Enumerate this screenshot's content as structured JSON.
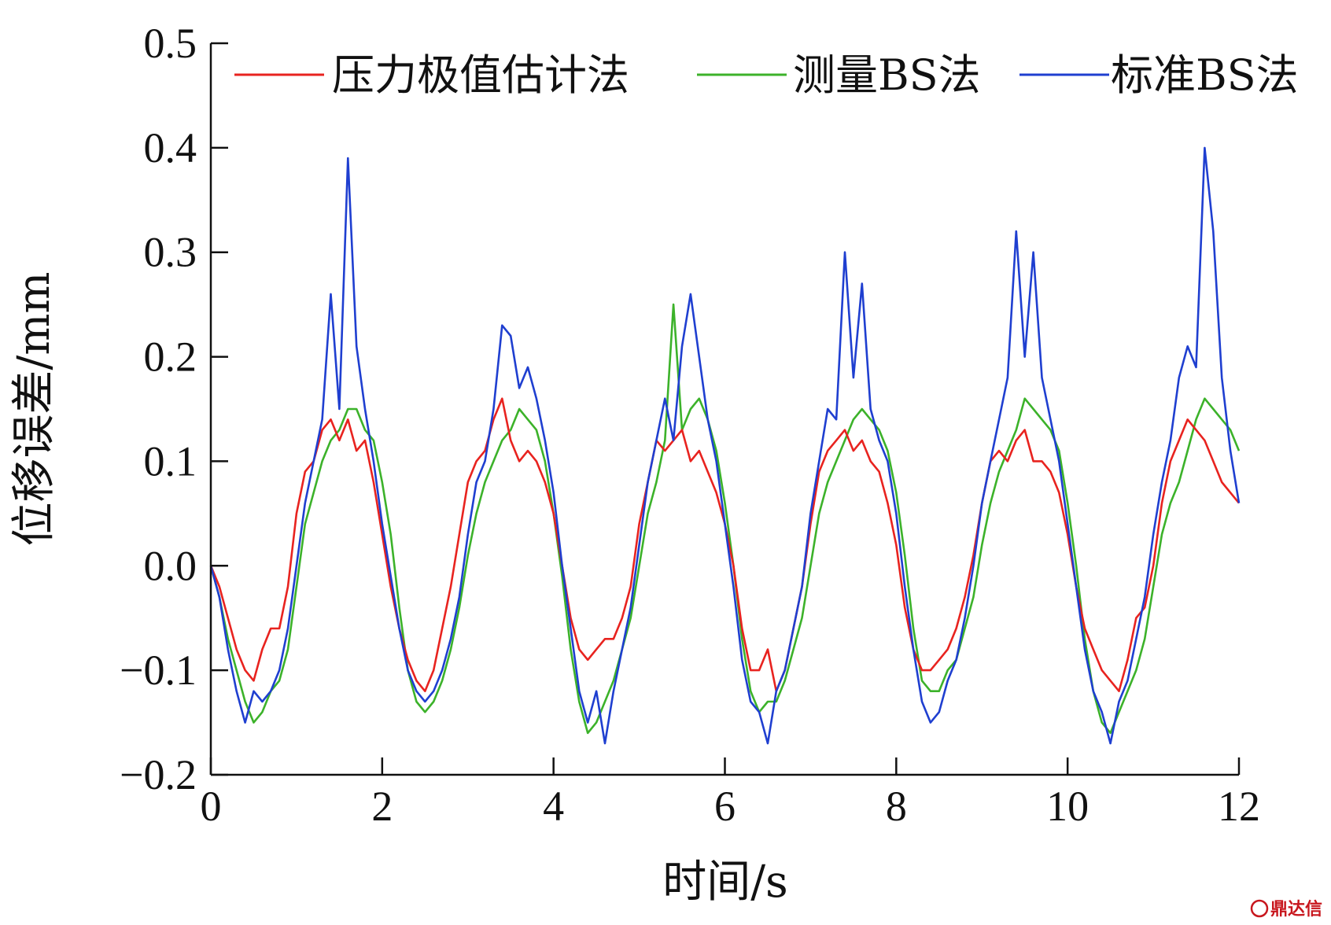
{
  "chart_data": {
    "type": "line",
    "title": "",
    "xlabel": "时间/s",
    "ylabel": "位移误差/mm",
    "xlim": [
      0,
      12
    ],
    "ylim": [
      -0.2,
      0.5
    ],
    "xticks": [
      0,
      2,
      4,
      6,
      8,
      10,
      12
    ],
    "xtick_labels": [
      "0",
      "2",
      "4",
      "6",
      "8",
      "10",
      "12"
    ],
    "yticks": [
      -0.2,
      -0.1,
      0.0,
      0.1,
      0.2,
      0.3,
      0.4,
      0.5
    ],
    "ytick_labels": [
      "−0.2",
      "−0.1",
      "0.0",
      "0.1",
      "0.2",
      "0.3",
      "0.4",
      "0.5"
    ],
    "grid": false,
    "legend_position": "top",
    "colors": {
      "red": "#e8231f",
      "green": "#3cb22a",
      "blue": "#1f3fd0"
    },
    "series": [
      {
        "name": "压力极值估计法",
        "color": "#e8231f",
        "x": [
          0.0,
          0.1,
          0.2,
          0.3,
          0.4,
          0.5,
          0.6,
          0.7,
          0.8,
          0.9,
          1.0,
          1.1,
          1.2,
          1.3,
          1.4,
          1.5,
          1.6,
          1.7,
          1.8,
          1.9,
          2.0,
          2.1,
          2.2,
          2.3,
          2.4,
          2.5,
          2.6,
          2.7,
          2.8,
          2.9,
          3.0,
          3.1,
          3.2,
          3.3,
          3.4,
          3.5,
          3.6,
          3.7,
          3.8,
          3.9,
          4.0,
          4.1,
          4.2,
          4.3,
          4.4,
          4.5,
          4.6,
          4.7,
          4.8,
          4.9,
          5.0,
          5.1,
          5.2,
          5.3,
          5.4,
          5.5,
          5.6,
          5.7,
          5.8,
          5.9,
          6.0,
          6.1,
          6.2,
          6.3,
          6.4,
          6.5,
          6.6,
          6.7,
          6.8,
          6.9,
          7.0,
          7.1,
          7.2,
          7.3,
          7.4,
          7.5,
          7.6,
          7.7,
          7.8,
          7.9,
          8.0,
          8.1,
          8.2,
          8.3,
          8.4,
          8.5,
          8.6,
          8.7,
          8.8,
          8.9,
          9.0,
          9.1,
          9.2,
          9.3,
          9.4,
          9.5,
          9.6,
          9.7,
          9.8,
          9.9,
          10.0,
          10.1,
          10.2,
          10.3,
          10.4,
          10.5,
          10.6,
          10.7,
          10.8,
          10.9,
          11.0,
          11.1,
          11.2,
          11.3,
          11.4,
          11.5,
          11.6,
          11.7,
          11.8,
          11.9,
          12.0
        ],
        "y": [
          0.0,
          -0.02,
          -0.05,
          -0.08,
          -0.1,
          -0.11,
          -0.08,
          -0.06,
          -0.06,
          -0.02,
          0.05,
          0.09,
          0.1,
          0.13,
          0.14,
          0.12,
          0.14,
          0.11,
          0.12,
          0.08,
          0.03,
          -0.02,
          -0.06,
          -0.09,
          -0.11,
          -0.12,
          -0.1,
          -0.06,
          -0.02,
          0.03,
          0.08,
          0.1,
          0.11,
          0.14,
          0.16,
          0.12,
          0.1,
          0.11,
          0.1,
          0.08,
          0.05,
          0.0,
          -0.05,
          -0.08,
          -0.09,
          -0.08,
          -0.07,
          -0.07,
          -0.05,
          -0.02,
          0.04,
          0.08,
          0.12,
          0.11,
          0.12,
          0.13,
          0.1,
          0.11,
          0.09,
          0.07,
          0.04,
          0.0,
          -0.06,
          -0.1,
          -0.1,
          -0.08,
          -0.12,
          -0.1,
          -0.06,
          -0.02,
          0.04,
          0.09,
          0.11,
          0.12,
          0.13,
          0.11,
          0.12,
          0.1,
          0.09,
          0.06,
          0.02,
          -0.04,
          -0.08,
          -0.1,
          -0.1,
          -0.09,
          -0.08,
          -0.06,
          -0.03,
          0.01,
          0.06,
          0.1,
          0.11,
          0.1,
          0.12,
          0.13,
          0.1,
          0.1,
          0.09,
          0.07,
          0.03,
          -0.02,
          -0.06,
          -0.08,
          -0.1,
          -0.11,
          -0.12,
          -0.09,
          -0.05,
          -0.04,
          0.0,
          0.06,
          0.1,
          0.12,
          0.14,
          0.13,
          0.12,
          0.1,
          0.08,
          0.07,
          0.06
        ]
      },
      {
        "name": "测量BS法",
        "color": "#3cb22a",
        "x": [
          0.0,
          0.1,
          0.2,
          0.3,
          0.4,
          0.5,
          0.6,
          0.7,
          0.8,
          0.9,
          1.0,
          1.1,
          1.2,
          1.3,
          1.4,
          1.5,
          1.6,
          1.7,
          1.8,
          1.9,
          2.0,
          2.1,
          2.2,
          2.3,
          2.4,
          2.5,
          2.6,
          2.7,
          2.8,
          2.9,
          3.0,
          3.1,
          3.2,
          3.3,
          3.4,
          3.5,
          3.6,
          3.7,
          3.8,
          3.9,
          4.0,
          4.1,
          4.2,
          4.3,
          4.4,
          4.5,
          4.6,
          4.7,
          4.8,
          4.9,
          5.0,
          5.1,
          5.2,
          5.3,
          5.4,
          5.5,
          5.6,
          5.7,
          5.8,
          5.9,
          6.0,
          6.1,
          6.2,
          6.3,
          6.4,
          6.5,
          6.6,
          6.7,
          6.8,
          6.9,
          7.0,
          7.1,
          7.2,
          7.3,
          7.4,
          7.5,
          7.6,
          7.7,
          7.8,
          7.9,
          8.0,
          8.1,
          8.2,
          8.3,
          8.4,
          8.5,
          8.6,
          8.7,
          8.8,
          8.9,
          9.0,
          9.1,
          9.2,
          9.3,
          9.4,
          9.5,
          9.6,
          9.7,
          9.8,
          9.9,
          10.0,
          10.1,
          10.2,
          10.3,
          10.4,
          10.5,
          10.6,
          10.7,
          10.8,
          10.9,
          11.0,
          11.1,
          11.2,
          11.3,
          11.4,
          11.5,
          11.6,
          11.7,
          11.8,
          11.9,
          12.0
        ],
        "y": [
          0.0,
          -0.03,
          -0.07,
          -0.1,
          -0.13,
          -0.15,
          -0.14,
          -0.12,
          -0.11,
          -0.08,
          -0.02,
          0.04,
          0.07,
          0.1,
          0.12,
          0.13,
          0.15,
          0.15,
          0.13,
          0.12,
          0.08,
          0.03,
          -0.04,
          -0.1,
          -0.13,
          -0.14,
          -0.13,
          -0.11,
          -0.08,
          -0.04,
          0.01,
          0.05,
          0.08,
          0.1,
          0.12,
          0.13,
          0.15,
          0.14,
          0.13,
          0.1,
          0.05,
          -0.01,
          -0.08,
          -0.13,
          -0.16,
          -0.15,
          -0.13,
          -0.11,
          -0.08,
          -0.05,
          0.0,
          0.05,
          0.08,
          0.12,
          0.25,
          0.13,
          0.15,
          0.16,
          0.14,
          0.11,
          0.06,
          0.0,
          -0.07,
          -0.12,
          -0.14,
          -0.13,
          -0.13,
          -0.11,
          -0.08,
          -0.05,
          0.0,
          0.05,
          0.08,
          0.1,
          0.12,
          0.14,
          0.15,
          0.14,
          0.13,
          0.11,
          0.07,
          0.01,
          -0.06,
          -0.11,
          -0.12,
          -0.12,
          -0.1,
          -0.09,
          -0.06,
          -0.03,
          0.02,
          0.06,
          0.09,
          0.11,
          0.13,
          0.16,
          0.15,
          0.14,
          0.13,
          0.11,
          0.06,
          0.0,
          -0.07,
          -0.12,
          -0.15,
          -0.16,
          -0.14,
          -0.12,
          -0.1,
          -0.07,
          -0.02,
          0.03,
          0.06,
          0.08,
          0.11,
          0.14,
          0.16,
          0.15,
          0.14,
          0.13,
          0.11
        ]
      },
      {
        "name": "标准BS法",
        "color": "#1f3fd0",
        "x": [
          0.0,
          0.1,
          0.2,
          0.3,
          0.4,
          0.5,
          0.6,
          0.7,
          0.8,
          0.9,
          1.0,
          1.1,
          1.2,
          1.3,
          1.4,
          1.5,
          1.6,
          1.7,
          1.8,
          1.9,
          2.0,
          2.1,
          2.2,
          2.3,
          2.4,
          2.5,
          2.6,
          2.7,
          2.8,
          2.9,
          3.0,
          3.1,
          3.2,
          3.3,
          3.4,
          3.5,
          3.6,
          3.7,
          3.8,
          3.9,
          4.0,
          4.1,
          4.2,
          4.3,
          4.4,
          4.5,
          4.6,
          4.7,
          4.8,
          4.9,
          5.0,
          5.1,
          5.2,
          5.3,
          5.4,
          5.5,
          5.6,
          5.7,
          5.8,
          5.9,
          6.0,
          6.1,
          6.2,
          6.3,
          6.4,
          6.5,
          6.6,
          6.7,
          6.8,
          6.9,
          7.0,
          7.1,
          7.2,
          7.3,
          7.4,
          7.5,
          7.6,
          7.7,
          7.8,
          7.9,
          8.0,
          8.1,
          8.2,
          8.3,
          8.4,
          8.5,
          8.6,
          8.7,
          8.8,
          8.9,
          9.0,
          9.1,
          9.2,
          9.3,
          9.4,
          9.5,
          9.6,
          9.7,
          9.8,
          9.9,
          10.0,
          10.1,
          10.2,
          10.3,
          10.4,
          10.5,
          10.6,
          10.7,
          10.8,
          10.9,
          11.0,
          11.1,
          11.2,
          11.3,
          11.4,
          11.5,
          11.6,
          11.7,
          11.8,
          11.9,
          12.0
        ],
        "y": [
          0.0,
          -0.03,
          -0.08,
          -0.12,
          -0.15,
          -0.12,
          -0.13,
          -0.12,
          -0.1,
          -0.06,
          0.0,
          0.06,
          0.1,
          0.14,
          0.26,
          0.15,
          0.39,
          0.21,
          0.15,
          0.1,
          0.04,
          -0.01,
          -0.06,
          -0.1,
          -0.12,
          -0.13,
          -0.12,
          -0.1,
          -0.07,
          -0.03,
          0.03,
          0.08,
          0.1,
          0.15,
          0.23,
          0.22,
          0.17,
          0.19,
          0.16,
          0.12,
          0.07,
          0.0,
          -0.06,
          -0.12,
          -0.15,
          -0.12,
          -0.17,
          -0.12,
          -0.08,
          -0.04,
          0.02,
          0.08,
          0.12,
          0.16,
          0.12,
          0.21,
          0.26,
          0.2,
          0.14,
          0.1,
          0.04,
          -0.02,
          -0.09,
          -0.13,
          -0.14,
          -0.17,
          -0.12,
          -0.1,
          -0.06,
          -0.02,
          0.05,
          0.1,
          0.15,
          0.14,
          0.3,
          0.18,
          0.27,
          0.15,
          0.12,
          0.1,
          0.05,
          -0.02,
          -0.08,
          -0.13,
          -0.15,
          -0.14,
          -0.11,
          -0.09,
          -0.05,
          0.0,
          0.06,
          0.1,
          0.14,
          0.18,
          0.32,
          0.2,
          0.3,
          0.18,
          0.14,
          0.1,
          0.04,
          -0.02,
          -0.08,
          -0.12,
          -0.14,
          -0.17,
          -0.13,
          -0.11,
          -0.07,
          -0.03,
          0.03,
          0.08,
          0.12,
          0.18,
          0.21,
          0.19,
          0.4,
          0.32,
          0.18,
          0.11,
          0.06
        ]
      }
    ],
    "watermark": "鼎达信"
  }
}
